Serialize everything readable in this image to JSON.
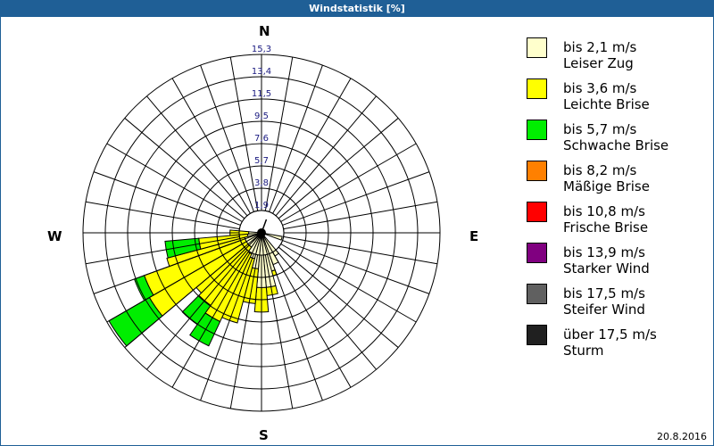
{
  "window": {
    "title": "Windstatistik [%]"
  },
  "compass": {
    "n": "N",
    "e": "E",
    "s": "S",
    "w": "W"
  },
  "footer": {
    "date": "20.8.2016"
  },
  "legend": [
    {
      "speed": "bis 2,1 m/s",
      "name": "Leiser Zug",
      "color": "#ffffcc"
    },
    {
      "speed": "bis 3,6 m/s",
      "name": "Leichte Brise",
      "color": "#ffff00"
    },
    {
      "speed": "bis 5,7 m/s",
      "name": "Schwache Brise",
      "color": "#00ee00"
    },
    {
      "speed": "bis 8,2 m/s",
      "name": "Mäßige Brise",
      "color": "#ff8000"
    },
    {
      "speed": "bis 10,8 m/s",
      "name": "Frische Brise",
      "color": "#ff0000"
    },
    {
      "speed": "bis 13,9 m/s",
      "name": "Starker Wind",
      "color": "#800080"
    },
    {
      "speed": "bis 17,5 m/s",
      "name": "Steifer Wind",
      "color": "#606060"
    },
    {
      "speed": "über 17,5 m/s",
      "name": "Sturm",
      "color": "#202020"
    }
  ],
  "chart_data": {
    "type": "wind-rose",
    "title": "Windstatistik [%]",
    "radial_unit": "%",
    "radial_ticks": [
      "1,9",
      "3,8",
      "5,7",
      "7,6",
      "9,5",
      "11,5",
      "13,4",
      "15,3"
    ],
    "radial_max": 15.3,
    "direction_step_deg": 10,
    "directions": [
      "N",
      "E",
      "S",
      "W"
    ],
    "speed_classes": [
      "bis 2,1 m/s",
      "bis 3,6 m/s",
      "bis 5,7 m/s",
      "bis 8,2 m/s",
      "bis 10,8 m/s",
      "bis 13,9 m/s",
      "bis 17,5 m/s",
      "über 17,5 m/s"
    ],
    "wedges": [
      {
        "from": 100,
        "to": 110,
        "cumulative_pct": [
          1.8,
          1.8,
          1.8
        ]
      },
      {
        "from": 140,
        "to": 150,
        "cumulative_pct": [
          2.3,
          2.3,
          2.3
        ]
      },
      {
        "from": 150,
        "to": 160,
        "cumulative_pct": [
          2.9,
          2.9,
          2.9
        ]
      },
      {
        "from": 160,
        "to": 170,
        "cumulative_pct": [
          3.4,
          3.8,
          3.8
        ]
      },
      {
        "from": 165,
        "to": 175,
        "cumulative_pct": [
          4.7,
          5.4,
          5.4
        ]
      },
      {
        "from": 175,
        "to": 185,
        "cumulative_pct": [
          4.7,
          6.8,
          6.8
        ]
      },
      {
        "from": 185,
        "to": 195,
        "cumulative_pct": [
          3.1,
          6.1,
          6.1
        ]
      },
      {
        "from": 195,
        "to": 205,
        "cumulative_pct": [
          2.3,
          8.0,
          8.0
        ]
      },
      {
        "from": 205,
        "to": 215,
        "cumulative_pct": [
          2.0,
          8.4,
          10.7
        ]
      },
      {
        "from": 215,
        "to": 225,
        "cumulative_pct": [
          1.5,
          7.6,
          9.6
        ]
      },
      {
        "from": 225,
        "to": 235,
        "cumulative_pct": [
          1.5,
          7.3,
          7.3
        ]
      },
      {
        "from": 230,
        "to": 240,
        "cumulative_pct": [
          1.5,
          11.1,
          15.1
        ]
      },
      {
        "from": 240,
        "to": 250,
        "cumulative_pct": [
          1.5,
          10.7,
          11.6
        ]
      },
      {
        "from": 250,
        "to": 255,
        "cumulative_pct": [
          1.5,
          8.4,
          8.4
        ]
      },
      {
        "from": 255,
        "to": 265,
        "cumulative_pct": [
          1.2,
          5.4,
          8.3
        ]
      },
      {
        "from": 265,
        "to": 275,
        "cumulative_pct": [
          1.1,
          2.7,
          2.7
        ]
      }
    ]
  }
}
